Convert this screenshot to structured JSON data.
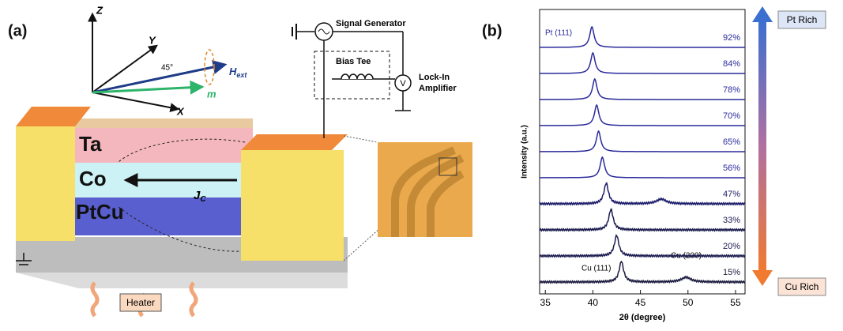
{
  "panel_a": {
    "label": "(a)",
    "axes": {
      "z": "Z",
      "y": "Y",
      "x": "X",
      "angle": "45°",
      "field": {
        "main": "H",
        "sub": "ext"
      },
      "magnetization": "m"
    },
    "circuit": {
      "generator": "Signal Generator",
      "bias_tee": "Bias Tee",
      "voltmeter": "V",
      "amplifier": [
        "Lock-In",
        "Amplifier"
      ]
    },
    "layers": [
      "Ta",
      "Co",
      "PtCu"
    ],
    "current": {
      "main": "J",
      "sub": "C"
    },
    "heater": "Heater"
  },
  "panel_b": {
    "label": "(b)",
    "top_label": "Pt Rich",
    "bottom_label": "Cu Rich"
  },
  "chart_data": {
    "type": "line",
    "x_label": "2θ (degree)",
    "y_label": "Intensity (a.u.)",
    "xlim": [
      34.4,
      56
    ],
    "xticks": [
      35,
      40,
      45,
      50,
      55
    ],
    "annotations": [
      "Pt (111)",
      "Cu (111)",
      "Cu (200)"
    ],
    "series": [
      {
        "name": "92%",
        "color": "#2a2a9c",
        "peaks": [
          39.9
        ]
      },
      {
        "name": "84%",
        "color": "#2a2a9c",
        "peaks": [
          40.0
        ]
      },
      {
        "name": "78%",
        "color": "#2a2a9c",
        "peaks": [
          40.2
        ]
      },
      {
        "name": "70%",
        "color": "#2a2a9c",
        "peaks": [
          40.4
        ]
      },
      {
        "name": "65%",
        "color": "#2a2a9c",
        "peaks": [
          40.6
        ]
      },
      {
        "name": "56%",
        "color": "#2a2a9c",
        "peaks": [
          41.0
        ]
      },
      {
        "name": "47%",
        "color": "#1c1c6a",
        "peaks": [
          41.4,
          47.2
        ]
      },
      {
        "name": "33%",
        "color": "#1c1c50",
        "peaks": [
          41.9
        ]
      },
      {
        "name": "20%",
        "color": "#1c1c50",
        "peaks": [
          42.5
        ]
      },
      {
        "name": "15%",
        "color": "#1c1c40",
        "peaks": [
          43.0,
          49.8
        ]
      }
    ]
  }
}
